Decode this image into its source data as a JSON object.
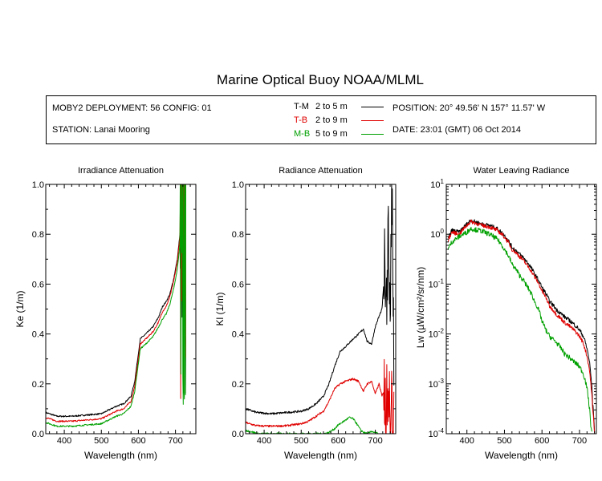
{
  "title": "Marine Optical Buoy NOAA/MLML",
  "info": {
    "deployment": "MOBY2 DEPLOYMENT: 56 CONFIG: 01",
    "station": "STATION: Lanai Mooring",
    "position": "POSITION: 20° 49.56' N   157° 11.57' W",
    "date": "DATE: 23:01 (GMT) 06 Oct 2014",
    "legend": [
      {
        "code": "T-M",
        "range": "2 to 5  m",
        "color": "#000000"
      },
      {
        "code": "T-B",
        "range": "2 to 9  m",
        "color": "#e00000"
      },
      {
        "code": "M-B",
        "range": "5 to 9  m",
        "color": "#00a000"
      }
    ]
  },
  "chart_data": [
    {
      "type": "line",
      "title": "Irradiance Attenuation",
      "xlabel": "Wavelength (nm)",
      "ylabel": "Ke  (1/m)",
      "xlim": [
        350,
        755
      ],
      "ylim": [
        0,
        1
      ],
      "xticks": [
        400,
        500,
        600,
        700
      ],
      "xtick_labels": [
        "400",
        "500",
        "600",
        "700"
      ],
      "yticks": [
        0,
        0.2,
        0.4,
        0.6,
        0.8,
        1
      ],
      "ytick_labels": [
        "0.0",
        "0.2",
        "0.4",
        "0.6",
        "0.8",
        "1.0"
      ],
      "series": [
        {
          "name": "T-M",
          "color": "#000000",
          "noise": 0.003,
          "x": [
            350,
            360,
            380,
            420,
            460,
            500,
            520,
            540,
            560,
            580,
            590,
            598,
            605,
            620,
            640,
            655,
            665,
            675,
            685,
            695,
            705,
            712,
            718,
            722,
            728
          ],
          "y": [
            0.085,
            0.08,
            0.07,
            0.07,
            0.075,
            0.08,
            0.095,
            0.11,
            0.12,
            0.15,
            0.21,
            0.3,
            0.38,
            0.4,
            0.43,
            0.47,
            0.51,
            0.53,
            0.56,
            0.62,
            0.7,
            0.8,
            0.93,
            1.0,
            1.0
          ]
        },
        {
          "name": "T-B",
          "color": "#e00000",
          "noise": 0.003,
          "x": [
            350,
            360,
            380,
            420,
            460,
            500,
            520,
            540,
            560,
            580,
            590,
            598,
            605,
            620,
            640,
            655,
            665,
            675,
            685,
            695,
            705,
            712,
            718,
            722,
            728
          ],
          "y": [
            0.065,
            0.06,
            0.05,
            0.05,
            0.055,
            0.06,
            0.075,
            0.09,
            0.1,
            0.13,
            0.19,
            0.28,
            0.36,
            0.38,
            0.41,
            0.45,
            0.49,
            0.51,
            0.55,
            0.61,
            0.69,
            0.79,
            0.92,
            1.0,
            1.0
          ]
        },
        {
          "name": "M-B",
          "color": "#00a000",
          "noise": 0.003,
          "x": [
            350,
            360,
            380,
            420,
            460,
            500,
            520,
            540,
            560,
            580,
            590,
            598,
            605,
            620,
            640,
            655,
            665,
            675,
            685,
            695,
            705,
            712,
            718,
            722,
            728
          ],
          "y": [
            0.045,
            0.04,
            0.03,
            0.03,
            0.035,
            0.04,
            0.055,
            0.07,
            0.08,
            0.11,
            0.17,
            0.26,
            0.34,
            0.36,
            0.39,
            0.43,
            0.46,
            0.48,
            0.52,
            0.58,
            0.66,
            0.76,
            0.9,
            0.98,
            1.0
          ]
        }
      ]
    },
    {
      "type": "line",
      "title": "Radiance Attenuation",
      "xlabel": "Wavelength (nm)",
      "ylabel": "Kl  (1/m)",
      "xlim": [
        350,
        755
      ],
      "ylim": [
        0,
        1
      ],
      "xticks": [
        400,
        500,
        600,
        700
      ],
      "xtick_labels": [
        "400",
        "500",
        "600",
        "700"
      ],
      "yticks": [
        0,
        0.2,
        0.4,
        0.6,
        0.8,
        1
      ],
      "ytick_labels": [
        "0.0",
        "0.2",
        "0.4",
        "0.6",
        "0.8",
        "1.0"
      ],
      "series": [
        {
          "name": "T-M",
          "color": "#000000",
          "noise": 0.004,
          "x": [
            350,
            360,
            380,
            420,
            460,
            500,
            520,
            540,
            560,
            575,
            590,
            605,
            620,
            640,
            655,
            668,
            678,
            690,
            700,
            710,
            718,
            725,
            730,
            735,
            740,
            745,
            750
          ],
          "y": [
            0.1,
            0.095,
            0.085,
            0.08,
            0.085,
            0.09,
            0.1,
            0.12,
            0.15,
            0.2,
            0.27,
            0.33,
            0.35,
            0.38,
            0.4,
            0.42,
            0.37,
            0.36,
            0.43,
            0.47,
            0.5,
            0.65,
            0.55,
            0.8,
            0.5,
            0.95,
            0.3
          ]
        },
        {
          "name": "T-B",
          "color": "#e00000",
          "noise": 0.004,
          "x": [
            350,
            360,
            380,
            420,
            460,
            500,
            520,
            540,
            560,
            575,
            590,
            605,
            620,
            640,
            655,
            668,
            678,
            690,
            700,
            710,
            718,
            725,
            730,
            735,
            740,
            745,
            750
          ],
          "y": [
            0.045,
            0.04,
            0.032,
            0.03,
            0.032,
            0.04,
            0.05,
            0.07,
            0.09,
            0.13,
            0.18,
            0.2,
            0.21,
            0.22,
            0.21,
            0.17,
            0.2,
            0.21,
            0.16,
            0.2,
            0.15,
            0.18,
            0.08,
            0.22,
            0.02,
            0.14,
            0.0
          ]
        },
        {
          "name": "M-B",
          "color": "#00a000",
          "noise": 0.004,
          "x": [
            350,
            360,
            375,
            380,
            390,
            560,
            575,
            590,
            600,
            610,
            620,
            630,
            640,
            650,
            660,
            670,
            680,
            690,
            700,
            708
          ],
          "y": [
            0.012,
            0.01,
            0.004,
            0.0,
            0.0,
            0.0,
            0.005,
            0.02,
            0.035,
            0.045,
            0.055,
            0.065,
            0.06,
            0.04,
            0.015,
            0.004,
            0.0,
            0.01,
            0.004,
            0.0
          ]
        }
      ]
    },
    {
      "type": "line",
      "title": "Water Leaving Radiance",
      "xlabel": "Wavelength (nm)",
      "ylabel": "Lw  (µW/cm²/sr/nm)",
      "log_y": true,
      "xlim": [
        345,
        745
      ],
      "ylim": [
        0.0001,
        10
      ],
      "xticks": [
        400,
        500,
        600,
        700
      ],
      "xtick_labels": [
        "400",
        "500",
        "600",
        "700"
      ],
      "yticks": [
        0.0001,
        0.001,
        0.01,
        0.1,
        1,
        10
      ],
      "ytick_labels": [
        [
          "10",
          "-4"
        ],
        [
          "10",
          "-3"
        ],
        [
          "10",
          "-2"
        ],
        [
          "10",
          "-1"
        ],
        [
          "10",
          "0"
        ],
        [
          "10",
          "1"
        ]
      ],
      "series": [
        {
          "name": "T-M",
          "color": "#000000",
          "noise": 0.04,
          "x": [
            350,
            360,
            380,
            400,
            410,
            420,
            440,
            460,
            480,
            500,
            520,
            540,
            560,
            580,
            600,
            620,
            640,
            660,
            680,
            700,
            710,
            720,
            730,
            735,
            740
          ],
          "y": [
            0.8,
            1.2,
            1.1,
            1.6,
            1.9,
            1.8,
            1.6,
            1.5,
            1.3,
            0.95,
            0.55,
            0.4,
            0.28,
            0.16,
            0.085,
            0.045,
            0.03,
            0.022,
            0.017,
            0.012,
            0.009,
            0.005,
            0.0015,
            0.0004,
            0.0001
          ]
        },
        {
          "name": "T-B",
          "color": "#e00000",
          "noise": 0.04,
          "x": [
            350,
            360,
            380,
            400,
            410,
            420,
            440,
            460,
            480,
            500,
            520,
            540,
            560,
            580,
            600,
            620,
            640,
            660,
            680,
            700,
            710,
            720,
            730,
            735,
            740
          ],
          "y": [
            0.75,
            1.1,
            1.0,
            1.5,
            1.8,
            1.7,
            1.5,
            1.4,
            1.2,
            0.88,
            0.5,
            0.36,
            0.24,
            0.14,
            0.072,
            0.036,
            0.024,
            0.017,
            0.013,
            0.009,
            0.0065,
            0.0035,
            0.001,
            0.0003,
            0.0001
          ]
        },
        {
          "name": "M-B",
          "color": "#00a000",
          "noise": 0.05,
          "x": [
            350,
            360,
            380,
            400,
            410,
            420,
            440,
            460,
            480,
            500,
            520,
            540,
            560,
            580,
            600,
            610,
            620,
            640,
            660,
            680,
            700,
            710,
            720,
            725,
            730,
            733
          ],
          "y": [
            0.5,
            0.7,
            0.9,
            1.1,
            1.3,
            1.25,
            1.15,
            1.0,
            0.8,
            0.5,
            0.25,
            0.15,
            0.09,
            0.045,
            0.018,
            0.012,
            0.009,
            0.0065,
            0.004,
            0.003,
            0.0022,
            0.0016,
            0.0008,
            0.0004,
            0.00015,
            0.0001
          ]
        }
      ]
    }
  ]
}
